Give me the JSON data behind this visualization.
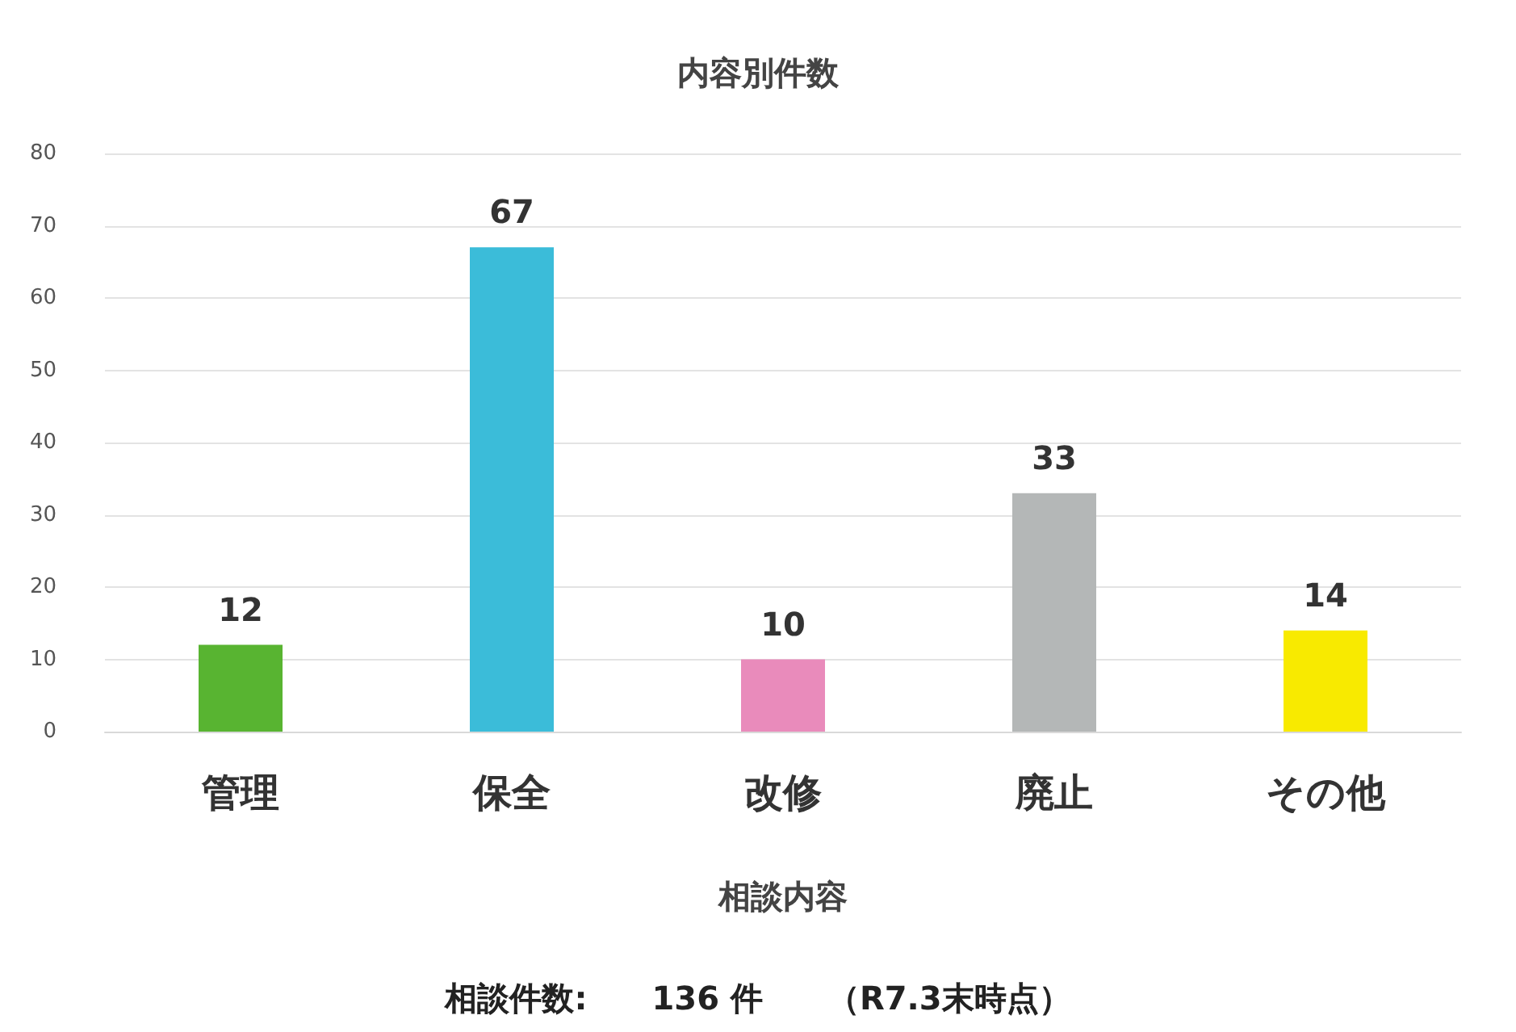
{
  "chart_data": {
    "type": "bar",
    "title": "内容別件数",
    "xlabel": "相談内容",
    "categories": [
      "管理",
      "保全",
      "改修",
      "廃止",
      "その他"
    ],
    "values": [
      12,
      67,
      10,
      33,
      14
    ],
    "colors": [
      "#58b431",
      "#3bbcd9",
      "#e98bbb",
      "#b4b7b7",
      "#f8ea00"
    ],
    "ylim": [
      0,
      80
    ],
    "yticks": [
      0,
      10,
      20,
      30,
      40,
      50,
      60,
      70,
      80
    ],
    "grid": "y",
    "data_labels": true,
    "annotations": [
      "相談件数:　　136 件　　（R7.3末時点）"
    ]
  }
}
